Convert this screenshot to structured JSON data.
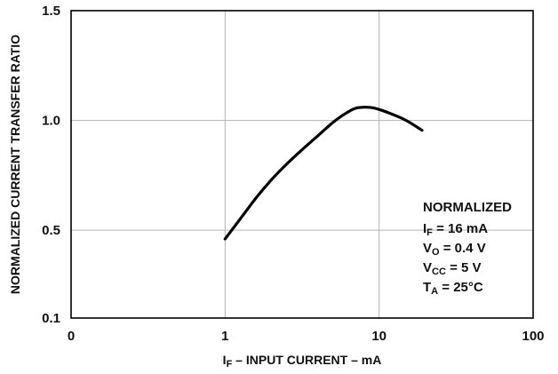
{
  "chart_data": {
    "type": "line",
    "xscale": "log",
    "xlim": [
      0.1,
      100
    ],
    "ylim": [
      0.1,
      1.5
    ],
    "x_ticks": [
      {
        "value": 0.1,
        "label": "0"
      },
      {
        "value": 1,
        "label": "1"
      },
      {
        "value": 10,
        "label": "10"
      },
      {
        "value": 100,
        "label": "100"
      }
    ],
    "y_ticks": [
      {
        "value": 0.1,
        "label": "0.1"
      },
      {
        "value": 0.5,
        "label": "0.5"
      },
      {
        "value": 1.0,
        "label": "1.0"
      },
      {
        "value": 1.5,
        "label": "1.5"
      }
    ],
    "grid": true,
    "series": [
      {
        "x": [
          1.0,
          1.25,
          1.6,
          2.0,
          2.5,
          3.2,
          4.0,
          5.0,
          6.0,
          7.0,
          8.0,
          9.0,
          10.0,
          12.0,
          15.0,
          19.0
        ],
        "y": [
          0.46,
          0.55,
          0.65,
          0.73,
          0.8,
          0.87,
          0.93,
          0.99,
          1.03,
          1.055,
          1.06,
          1.058,
          1.05,
          1.03,
          1.0,
          0.955
        ]
      }
    ],
    "xlabel": {
      "main": "I",
      "sub": "F",
      "rest": " – INPUT CURRENT – mA"
    },
    "ylabel": "NORMALIZED CURRENT TRANSFER RATIO",
    "annotation": {
      "title": "NORMALIZED",
      "lines": [
        {
          "main": "I",
          "sub": "F",
          "rest": " = 16 mA"
        },
        {
          "main": "V",
          "sub": "O",
          "rest": " = 0.4 V"
        },
        {
          "main": "V",
          "sub": "CC",
          "rest": " = 5 V"
        },
        {
          "main": "T",
          "sub": "A",
          "rest": " = 25°C"
        }
      ]
    }
  }
}
